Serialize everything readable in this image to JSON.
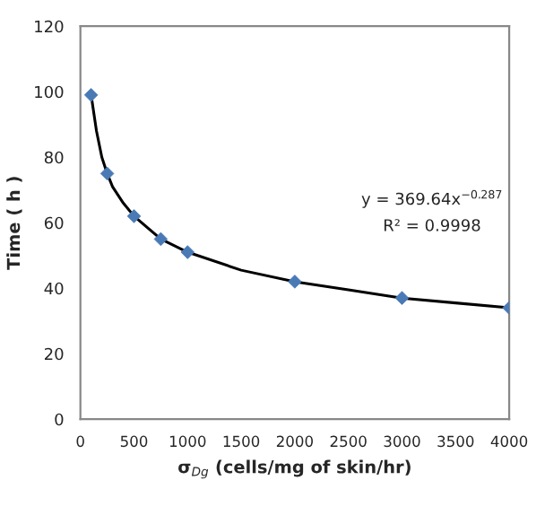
{
  "chart_data": {
    "type": "scatter",
    "xlabel": "σ$_{Dg}$ (cells/mg of skin/hr)",
    "ylabel": "Time ( h )",
    "xlim": [
      0,
      4000
    ],
    "xticks": [
      0,
      500,
      1000,
      1500,
      2000,
      2500,
      3000,
      3500,
      4000
    ],
    "ylim": [
      0,
      120
    ],
    "yticks": [
      0,
      20,
      40,
      60,
      80,
      100,
      120
    ],
    "grid": false,
    "series": [
      {
        "marker": "diamond",
        "color": "#4a7ab5",
        "x": [
          100,
          250,
          500,
          750,
          1000,
          2000,
          3000,
          4000
        ],
        "values": [
          99,
          75,
          62,
          55,
          51,
          42,
          37,
          34
        ]
      },
      {
        "type": "line",
        "marker": "none",
        "color": "#000000",
        "x": [
          100,
          150,
          200,
          250,
          300,
          400,
          500,
          750,
          1000,
          1500,
          2000,
          2500,
          3000,
          3500,
          4000
        ],
        "values": [
          99,
          88,
          80,
          75,
          71,
          66,
          62,
          55,
          51,
          45.5,
          42,
          39.5,
          37,
          35.5,
          34
        ]
      }
    ],
    "annotations": [
      "y = 369.64x$^{−0.287}$",
      "R² = 0.9998"
    ]
  }
}
